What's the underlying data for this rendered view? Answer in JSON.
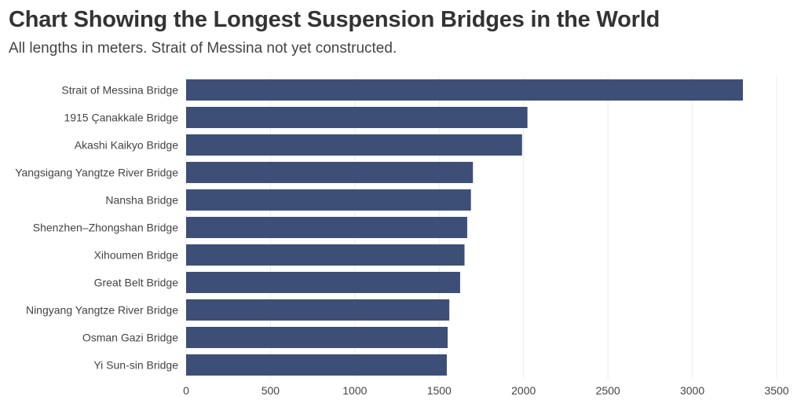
{
  "chart_data": {
    "type": "bar",
    "orientation": "horizontal",
    "title": "Chart Showing the Longest Suspension Bridges in the World",
    "subtitle": "All lengths in meters. Strait of Messina not yet constructed.",
    "xlabel": "",
    "ylabel": "",
    "categories": [
      "Strait of Messina Bridge",
      "1915 Çanakkale Bridge",
      "Akashi Kaikyo Bridge",
      "Yangsigang Yangtze River Bridge",
      "Nansha Bridge",
      "Shenzhen–Zhongshan Bridge",
      "Xihoumen Bridge",
      "Great Belt Bridge",
      "Ningyang Yangtze River Bridge",
      "Osman Gazi Bridge",
      "Yi Sun-sin Bridge"
    ],
    "values": [
      3300,
      2023,
      1991,
      1700,
      1688,
      1666,
      1650,
      1624,
      1560,
      1550,
      1545
    ],
    "xlim": [
      0,
      3500
    ],
    "xticks": [
      0,
      500,
      1000,
      1500,
      2000,
      2500,
      3000,
      3500
    ],
    "grid": "vertical",
    "bar_color": "#3d4f76",
    "grid_color": "#ececec"
  }
}
